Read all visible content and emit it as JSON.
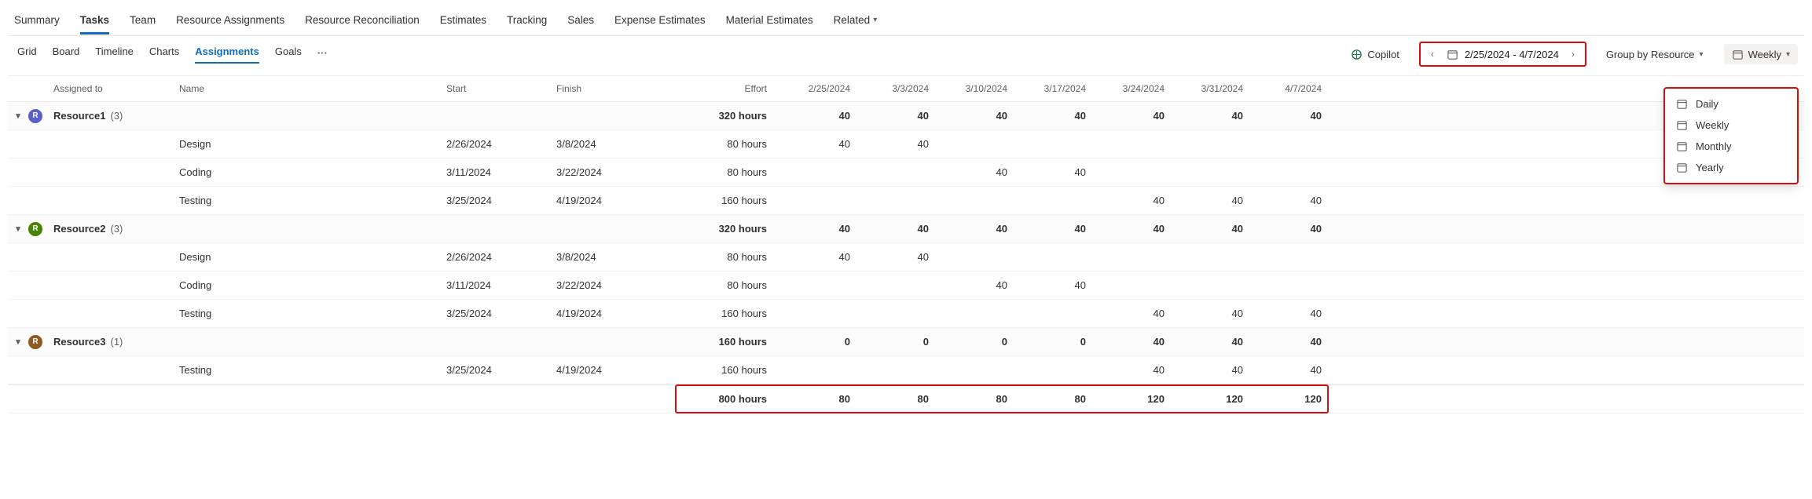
{
  "top_tabs": [
    {
      "label": "Summary",
      "active": false
    },
    {
      "label": "Tasks",
      "active": true
    },
    {
      "label": "Team",
      "active": false
    },
    {
      "label": "Resource Assignments",
      "active": false
    },
    {
      "label": "Resource Reconciliation",
      "active": false
    },
    {
      "label": "Estimates",
      "active": false
    },
    {
      "label": "Tracking",
      "active": false
    },
    {
      "label": "Sales",
      "active": false
    },
    {
      "label": "Expense Estimates",
      "active": false
    },
    {
      "label": "Material Estimates",
      "active": false
    },
    {
      "label": "Related",
      "active": false,
      "has_chevron": true
    }
  ],
  "view_tabs": [
    {
      "label": "Grid",
      "active": false
    },
    {
      "label": "Board",
      "active": false
    },
    {
      "label": "Timeline",
      "active": false
    },
    {
      "label": "Charts",
      "active": false
    },
    {
      "label": "Assignments",
      "active": true
    },
    {
      "label": "Goals",
      "active": false
    }
  ],
  "toolbar": {
    "copilot_label": "Copilot",
    "date_range": "2/25/2024 - 4/7/2024",
    "group_by_label": "Group by Resource",
    "period_label": "Weekly"
  },
  "dropdown_options": [
    "Daily",
    "Weekly",
    "Monthly",
    "Yearly"
  ],
  "columns": {
    "assigned_to": "Assigned to",
    "name": "Name",
    "start": "Start",
    "finish": "Finish",
    "effort": "Effort",
    "dates": [
      "2/25/2024",
      "3/3/2024",
      "3/10/2024",
      "3/17/2024",
      "3/24/2024",
      "3/31/2024",
      "4/7/2024"
    ]
  },
  "groups": [
    {
      "label": "Resource1",
      "count": "(3)",
      "avatar_bg": "#5b5fc7",
      "effort": "320 hours",
      "week_vals": [
        "40",
        "40",
        "40",
        "40",
        "40",
        "40",
        "40"
      ],
      "tasks": [
        {
          "name": "Design",
          "start": "2/26/2024",
          "finish": "3/8/2024",
          "effort": "80 hours",
          "week_vals": [
            "40",
            "40",
            "",
            "",
            "",
            "",
            ""
          ]
        },
        {
          "name": "Coding",
          "start": "3/11/2024",
          "finish": "3/22/2024",
          "effort": "80 hours",
          "week_vals": [
            "",
            "",
            "40",
            "40",
            "",
            "",
            ""
          ]
        },
        {
          "name": "Testing",
          "start": "3/25/2024",
          "finish": "4/19/2024",
          "effort": "160 hours",
          "week_vals": [
            "",
            "",
            "",
            "",
            "40",
            "40",
            "40"
          ]
        }
      ]
    },
    {
      "label": "Resource2",
      "count": "(3)",
      "avatar_bg": "#498205",
      "effort": "320 hours",
      "week_vals": [
        "40",
        "40",
        "40",
        "40",
        "40",
        "40",
        "40"
      ],
      "tasks": [
        {
          "name": "Design",
          "start": "2/26/2024",
          "finish": "3/8/2024",
          "effort": "80 hours",
          "week_vals": [
            "40",
            "40",
            "",
            "",
            "",
            "",
            ""
          ]
        },
        {
          "name": "Coding",
          "start": "3/11/2024",
          "finish": "3/22/2024",
          "effort": "80 hours",
          "week_vals": [
            "",
            "",
            "40",
            "40",
            "",
            "",
            ""
          ]
        },
        {
          "name": "Testing",
          "start": "3/25/2024",
          "finish": "4/19/2024",
          "effort": "160 hours",
          "week_vals": [
            "",
            "",
            "",
            "",
            "40",
            "40",
            "40"
          ]
        }
      ]
    },
    {
      "label": "Resource3",
      "count": "(1)",
      "avatar_bg": "#8e5b24",
      "effort": "160 hours",
      "week_vals": [
        "0",
        "0",
        "0",
        "0",
        "40",
        "40",
        "40"
      ],
      "tasks": [
        {
          "name": "Testing",
          "start": "3/25/2024",
          "finish": "4/19/2024",
          "effort": "160 hours",
          "week_vals": [
            "",
            "",
            "",
            "",
            "40",
            "40",
            "40"
          ]
        }
      ]
    }
  ],
  "totals": {
    "effort": "800 hours",
    "week_vals": [
      "80",
      "80",
      "80",
      "80",
      "120",
      "120",
      "120"
    ]
  }
}
